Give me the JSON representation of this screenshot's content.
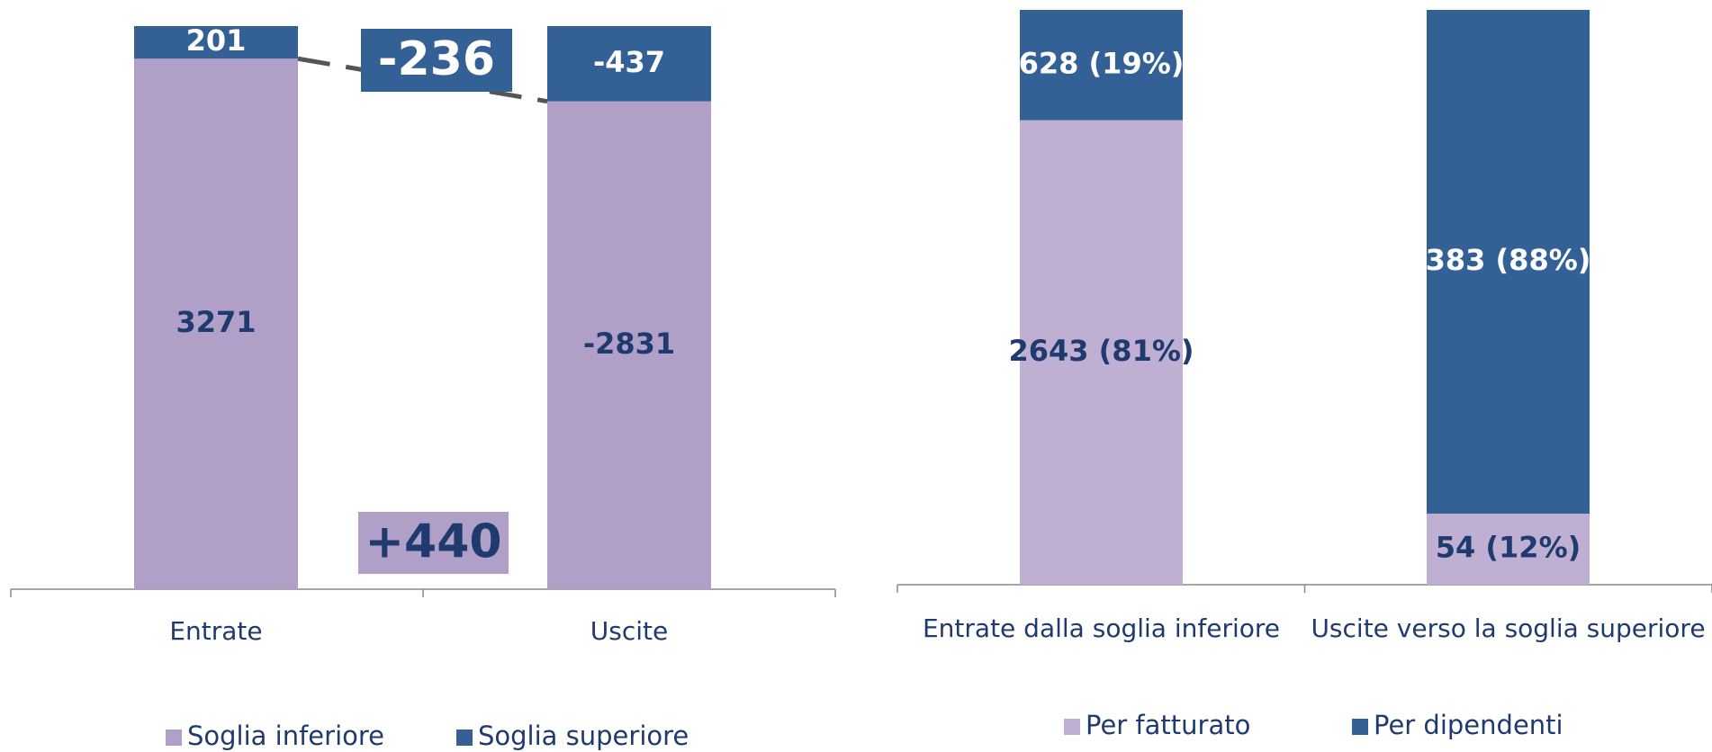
{
  "chart_data": [
    {
      "type": "bar",
      "stacked": true,
      "connector": true,
      "categories": [
        "Entrate",
        "Uscite"
      ],
      "series": [
        {
          "name": "Soglia inferiore",
          "color": "#b0a0c8",
          "label_color": "#1f3a6e",
          "values": [
            3271,
            -2831
          ]
        },
        {
          "name": "Soglia superiore",
          "color": "#336196",
          "label_color": "#ffffff",
          "values": [
            201,
            -437
          ]
        }
      ],
      "annotations": [
        {
          "text": "-236",
          "color": "#336196",
          "text_color": "#ffffff"
        },
        {
          "text": "+440",
          "color": "#b0a0c8",
          "text_color": "#1f3a6e"
        }
      ]
    },
    {
      "type": "bar",
      "stacked": true,
      "categories": [
        "Entrate dalla soglia inferiore",
        "Uscite verso la soglia superiore"
      ],
      "series": [
        {
          "name": "Per fatturato",
          "color": "#bfb0d3",
          "label_color": "#1f3a6e",
          "values": [
            2643,
            54
          ],
          "value_labels": [
            "2643 (81%)",
            "54 (12%)"
          ]
        },
        {
          "name": "Per dipendenti",
          "color": "#336196",
          "label_color": "#ffffff",
          "values": [
            628,
            383
          ],
          "value_labels": [
            "628 (19%)",
            "383 (88%)"
          ]
        }
      ]
    }
  ]
}
